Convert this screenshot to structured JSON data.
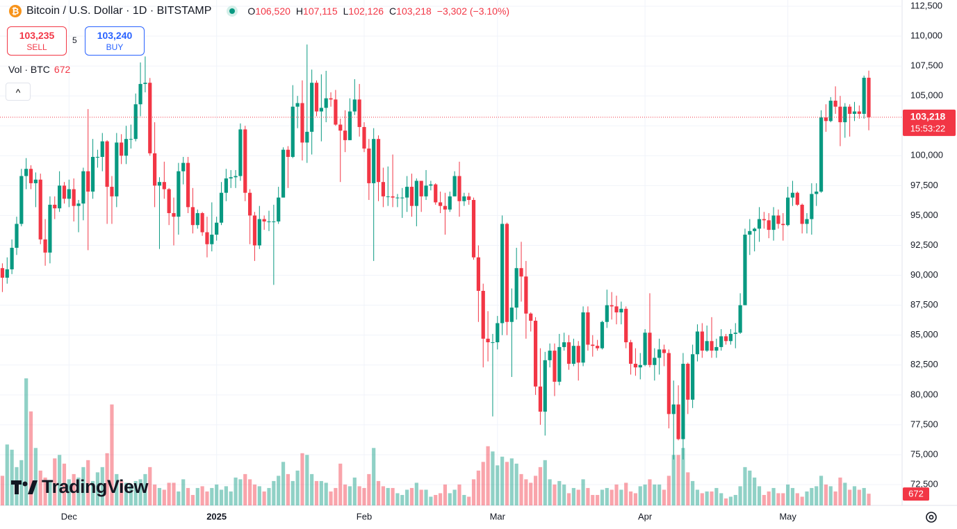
{
  "chart_data": {
    "type": "candlestick",
    "title": "Bitcoin / U.S. Dollar · 1D · BITSTAMP",
    "open": [
      90600,
      89800,
      90500,
      92300,
      94300,
      98300,
      98900,
      97700,
      98000,
      93000,
      91900,
      95900,
      95600,
      97500,
      96400,
      97200,
      95800,
      96000,
      98700,
      97000,
      99900,
      99900,
      101200,
      97400,
      96600,
      101100,
      100000,
      101400,
      101400,
      104300,
      106000,
      106100,
      100200,
      97500,
      97800,
      97200,
      95200,
      94900,
      98700,
      99400,
      95700,
      94200,
      95200,
      93600,
      92600,
      93400,
      94400,
      96900,
      98100,
      98200,
      98300,
      102200,
      96900,
      95000,
      92500,
      94700,
      94500,
      94500,
      94500,
      96500,
      100500,
      99900,
      104100,
      104400,
      101100,
      102000,
      106100,
      103700,
      104000,
      104800,
      104700,
      102600,
      102100,
      101300,
      103700,
      104700,
      102400,
      100600,
      97700,
      101400,
      97800,
      96600,
      96600,
      96500,
      96500,
      96500,
      97400,
      95800,
      97900,
      96600,
      97500,
      97600,
      96100,
      95800,
      95500,
      96600,
      98300,
      96200,
      96600,
      96300,
      91500,
      88700,
      84700,
      84400,
      84400,
      86000,
      94300,
      86100,
      87300,
      90600,
      89900,
      86800,
      86200,
      80700,
      78600,
      82900,
      83700,
      81100,
      84000,
      84400,
      82600,
      84100,
      82700,
      86900,
      84200,
      84100,
      83900,
      86100,
      87500,
      87400,
      86900,
      87200,
      84400,
      82600,
      82300,
      82500,
      85200,
      82500,
      83100,
      83800,
      83500,
      78400,
      79200,
      76300,
      82600,
      79600,
      83400,
      85300,
      83700,
      84500,
      83700,
      84000,
      84900,
      84500,
      85100,
      85200,
      87500,
      93400,
      93700,
      93900,
      94700,
      94600,
      93800,
      95000,
      94300,
      94200,
      96500,
      96900,
      95900,
      94300,
      94700,
      96800,
      97000,
      103200,
      102900,
      104600,
      104100,
      102800,
      104100,
      103500,
      103700,
      103500,
      106520
    ],
    "high": [
      91000,
      91500,
      93000,
      94900,
      98900,
      99800,
      99200,
      98600,
      98500,
      94700,
      96600,
      96600,
      98700,
      97800,
      98000,
      98100,
      96300,
      99000,
      103900,
      101400,
      100500,
      101900,
      101300,
      98300,
      101900,
      101800,
      102500,
      102600,
      105200,
      107800,
      108300,
      106500,
      102800,
      98200,
      99500,
      97300,
      96500,
      99400,
      99900,
      99900,
      97300,
      95500,
      95300,
      94900,
      96100,
      94900,
      97800,
      98900,
      98800,
      98800,
      102700,
      102500,
      97200,
      95300,
      95800,
      95000,
      95400,
      95900,
      97400,
      100700,
      100800,
      105900,
      105000,
      106300,
      109300,
      107200,
      106300,
      106800,
      107100,
      105300,
      105500,
      103100,
      103800,
      104800,
      106400,
      106000,
      102800,
      101400,
      102300,
      101700,
      99000,
      99100,
      100100,
      96800,
      97300,
      98300,
      98500,
      98100,
      97900,
      98800,
      97900,
      97700,
      97000,
      96900,
      97000,
      98700,
      99500,
      96900,
      96900,
      96500,
      92500,
      89300,
      87000,
      85100,
      86600,
      95000,
      94400,
      88900,
      92300,
      92800,
      91200,
      86900,
      86500,
      83900,
      83600,
      84300,
      84300,
      85100,
      85200,
      85000,
      84700,
      84500,
      87400,
      87400,
      85000,
      84600,
      86200,
      88800,
      88600,
      88300,
      87800,
      87400,
      84600,
      83900,
      83500,
      85500,
      88500,
      83900,
      84700,
      84200,
      83800,
      81200,
      80800,
      83500,
      82700,
      84200,
      85900,
      86000,
      85800,
      86500,
      84700,
      85500,
      85100,
      85500,
      86000,
      88500,
      93900,
      94700,
      94000,
      95700,
      95300,
      95200,
      95700,
      95500,
      95200,
      97400,
      97900,
      97000,
      96000,
      95200,
      97700,
      97700,
      103800,
      104300,
      104900,
      105800,
      105000,
      104400,
      104300,
      104500,
      104200,
      106700,
      107115
    ],
    "low": [
      88600,
      89300,
      90100,
      91700,
      94100,
      97200,
      97200,
      95700,
      92600,
      90800,
      91000,
      94700,
      95300,
      96000,
      95700,
      94500,
      93600,
      94600,
      92100,
      96400,
      99000,
      98700,
      94300,
      94300,
      95700,
      99300,
      99300,
      100600,
      101200,
      103300,
      105300,
      100000,
      95700,
      92200,
      96400,
      94200,
      92500,
      93400,
      97600,
      95200,
      93500,
      93900,
      93300,
      91500,
      92000,
      92900,
      94200,
      96200,
      97300,
      97300,
      97900,
      96200,
      92600,
      91200,
      92200,
      93800,
      93700,
      89200,
      94300,
      96500,
      97300,
      99800,
      102300,
      99600,
      99400,
      100100,
      103300,
      101200,
      102800,
      104100,
      102500,
      97800,
      100300,
      101300,
      103400,
      101600,
      100300,
      96300,
      91200,
      96200,
      95700,
      95800,
      95700,
      95700,
      94800,
      95300,
      94900,
      94100,
      95300,
      96300,
      97100,
      95900,
      95200,
      93400,
      95300,
      96600,
      94900,
      95800,
      95900,
      91300,
      86100,
      82300,
      82800,
      78200,
      83800,
      85000,
      85000,
      81500,
      86300,
      87800,
      84700,
      85300,
      80000,
      77500,
      76600,
      82300,
      79900,
      80800,
      83700,
      82100,
      82400,
      81200,
      82400,
      83700,
      83200,
      83700,
      83800,
      85600,
      86300,
      85900,
      85900,
      83900,
      81700,
      81600,
      81300,
      82400,
      82300,
      81200,
      81700,
      82400,
      77200,
      74600,
      76200,
      74600,
      78400,
      78900,
      82800,
      83100,
      83600,
      83100,
      83100,
      83700,
      84200,
      84200,
      83900,
      85100,
      87500,
      91700,
      92000,
      92800,
      93900,
      93100,
      92900,
      93900,
      92900,
      94100,
      95800,
      95800,
      93500,
      93500,
      93400,
      95800,
      96900,
      102000,
      102800,
      103500,
      100800,
      101500,
      101600,
      102900,
      103100,
      103100,
      102126
    ],
    "close": [
      89800,
      90500,
      92300,
      94300,
      98300,
      98900,
      97700,
      98000,
      93000,
      91900,
      95900,
      95600,
      97500,
      96400,
      97200,
      95800,
      96000,
      98700,
      97000,
      99900,
      99900,
      101200,
      97400,
      96600,
      101100,
      100000,
      101400,
      101400,
      104300,
      106000,
      106100,
      100200,
      97500,
      97800,
      97200,
      95200,
      94900,
      98700,
      99400,
      95700,
      94200,
      95200,
      93600,
      92600,
      93400,
      94400,
      96900,
      98100,
      98200,
      98300,
      102200,
      96900,
      95000,
      92500,
      94700,
      94500,
      94500,
      94500,
      96500,
      100500,
      99900,
      104100,
      104400,
      101100,
      102000,
      106100,
      103700,
      104000,
      104800,
      104700,
      102600,
      102100,
      101300,
      103700,
      104700,
      102400,
      100600,
      97700,
      101400,
      97800,
      96600,
      96600,
      96500,
      96500,
      96500,
      97400,
      95800,
      97900,
      96600,
      97500,
      97600,
      96100,
      95800,
      95500,
      96600,
      98300,
      96200,
      96600,
      96300,
      91500,
      88700,
      84700,
      84400,
      84400,
      86000,
      94300,
      86100,
      87300,
      90600,
      89900,
      86800,
      86200,
      80700,
      78600,
      82900,
      83700,
      81100,
      84000,
      84400,
      82600,
      84100,
      82700,
      86900,
      84200,
      84100,
      83900,
      86100,
      87500,
      87400,
      86900,
      87200,
      84400,
      82600,
      82300,
      82500,
      85200,
      82500,
      83100,
      83800,
      83500,
      78400,
      79200,
      76300,
      82600,
      79600,
      83400,
      85300,
      83700,
      84500,
      83700,
      84000,
      84900,
      84500,
      85100,
      85200,
      87500,
      93400,
      93700,
      93900,
      94700,
      94600,
      93800,
      95000,
      94300,
      94200,
      96500,
      96900,
      95900,
      94300,
      94700,
      96800,
      97000,
      103200,
      102900,
      104600,
      104100,
      102800,
      104100,
      103500,
      103700,
      103500,
      106520,
      103218
    ],
    "volume": [
      1700,
      3500,
      3200,
      2200,
      2600,
      7300,
      5400,
      3300,
      2000,
      1600,
      1400,
      2700,
      2900,
      2400,
      1500,
      1800,
      1600,
      2200,
      2600,
      1400,
      1900,
      2200,
      3000,
      5800,
      1800,
      1400,
      1300,
      1200,
      1400,
      1500,
      1800,
      2200,
      1200,
      1000,
      900,
      1300,
      1300,
      800,
      1500,
      1000,
      600,
      1000,
      1100,
      800,
      1000,
      1200,
      900,
      1100,
      800,
      1600,
      1500,
      1800,
      1500,
      1200,
      1100,
      800,
      1000,
      1400,
      1700,
      2500,
      1800,
      1400,
      2000,
      3000,
      2900,
      1800,
      1400,
      1400,
      1300,
      800,
      1000,
      2400,
      1200,
      1100,
      1600,
      1100,
      1000,
      1800,
      3300,
      1400,
      1100,
      1000,
      1000,
      700,
      600,
      900,
      1000,
      1300,
      900,
      900,
      500,
      600,
      700,
      1200,
      700,
      900,
      1200,
      600,
      500,
      1500,
      2000,
      2500,
      3400,
      3100,
      2300,
      2800,
      2500,
      2700,
      2400,
      1800,
      1500,
      1300,
      1700,
      2200,
      2600,
      1500,
      1200,
      1400,
      1200,
      700,
      1000,
      900,
      1500,
      1000,
      600,
      600,
      900,
      1000,
      900,
      1200,
      900,
      1300,
      800,
      700,
      1100,
      1200,
      1500,
      1200,
      1200,
      900,
      1700,
      2900,
      2900,
      3300,
      1900,
      1400,
      900,
      700,
      800,
      800,
      1000,
      700,
      400,
      500,
      600,
      1100,
      2200,
      2000,
      1600,
      1100,
      600,
      800,
      1000,
      700,
      700,
      1200,
      1000,
      700,
      500,
      800,
      1000,
      1100,
      1700,
      1200,
      1100,
      800,
      1600,
      1300,
      900,
      1100,
      900,
      1000,
      672
    ],
    "volume_label": "Vol · BTC",
    "ylim": [
      70760,
      113020
    ],
    "yticks": [
      {
        "value": 72500,
        "label": "72,500"
      },
      {
        "value": 75000,
        "label": "75,000"
      },
      {
        "value": 77500,
        "label": "77,500"
      },
      {
        "value": 80000,
        "label": "80,000"
      },
      {
        "value": 82500,
        "label": "82,500"
      },
      {
        "value": 85000,
        "label": "85,000"
      },
      {
        "value": 87500,
        "label": "87,500"
      },
      {
        "value": 90000,
        "label": "90,000"
      },
      {
        "value": 92500,
        "label": "92,500"
      },
      {
        "value": 95000,
        "label": "95,000"
      },
      {
        "value": 97500,
        "label": "97,500"
      },
      {
        "value": 100000,
        "label": "100,000"
      },
      {
        "value": 102500,
        "label": "102,500"
      },
      {
        "value": 105000,
        "label": "105,000"
      },
      {
        "value": 107500,
        "label": "107,500"
      },
      {
        "value": 110000,
        "label": "110,000"
      },
      {
        "value": 112500,
        "label": "112,500"
      }
    ],
    "xlim": [
      -0.5,
      189
    ],
    "xticks": [
      {
        "value": 14,
        "label": "Dec"
      },
      {
        "value": 45,
        "label": "2025"
      },
      {
        "value": 76,
        "label": "Feb"
      },
      {
        "value": 104,
        "label": "Mar"
      },
      {
        "value": 135,
        "label": "Apr"
      },
      {
        "value": 165,
        "label": "May"
      }
    ],
    "up_color": "#089981",
    "down_color": "#f23645",
    "grid": true,
    "last_price_label": "103,218",
    "countdown": "15:53:22"
  },
  "header": {
    "ohlc": [
      {
        "key": "O",
        "value": "106,520"
      },
      {
        "key": "H",
        "value": "107,115"
      },
      {
        "key": "L",
        "value": "102,126"
      },
      {
        "key": "C",
        "value": "103,218"
      }
    ],
    "change": "−3,302 (−3.10%)",
    "sell": {
      "price": "103,235",
      "label": "SELL"
    },
    "spread": "5",
    "buy": {
      "price": "103,240",
      "label": "BUY"
    }
  },
  "logo": "TradingView"
}
